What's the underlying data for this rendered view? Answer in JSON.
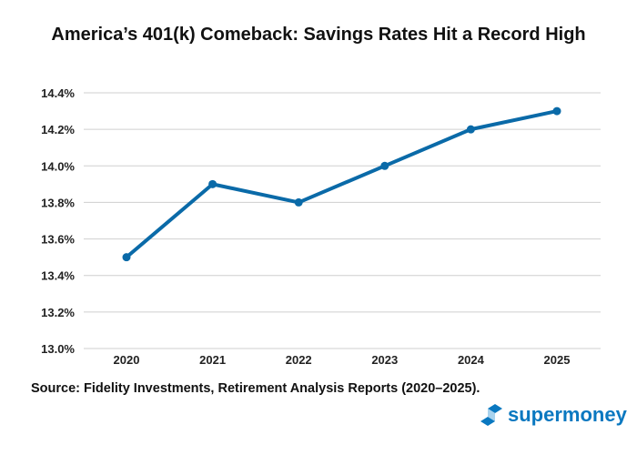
{
  "chart_data": {
    "type": "line",
    "title": "America’s 401(k) Comeback: Savings Rates Hit a Record High",
    "categories": [
      "2020",
      "2021",
      "2022",
      "2023",
      "2024",
      "2025"
    ],
    "series": [
      {
        "values": [
          13.5,
          13.9,
          13.8,
          14.0,
          14.2,
          14.3
        ]
      }
    ],
    "ylim": [
      13.0,
      14.4
    ],
    "yticks": [
      13.0,
      13.2,
      13.4,
      13.6,
      13.8,
      14.0,
      14.2,
      14.4
    ],
    "ytick_labels": [
      "13.0%",
      "13.2%",
      "13.4%",
      "13.6%",
      "13.8%",
      "14.0%",
      "14.2%",
      "14.4%"
    ],
    "grid": true,
    "line_color": "#0a6aa8",
    "source": "Source: Fidelity Investments, Retirement Analysis Reports (2020–2025)."
  },
  "brand": {
    "name": "supermoney",
    "color": "#0a78c0"
  }
}
